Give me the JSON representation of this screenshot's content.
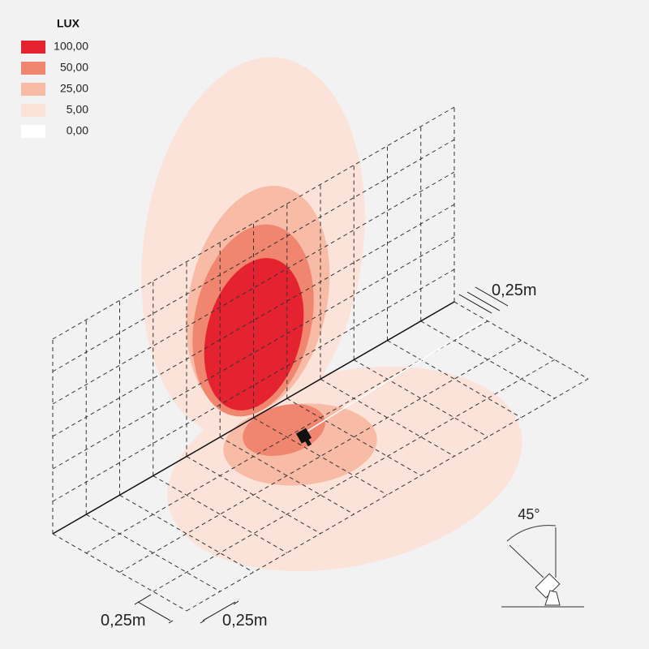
{
  "legend": {
    "title": "LUX",
    "items": [
      {
        "label": "100,00",
        "color": "#e52330"
      },
      {
        "label": "50,00",
        "color": "#f0866f"
      },
      {
        "label": "25,00",
        "color": "#f7bba6"
      },
      {
        "label": "5,00",
        "color": "#fce3da"
      },
      {
        "label": "0,00",
        "color": "#ffffff"
      }
    ]
  },
  "dimensions": [
    "0,25m",
    "0,25m",
    "0,25m"
  ],
  "angle": "45°"
}
